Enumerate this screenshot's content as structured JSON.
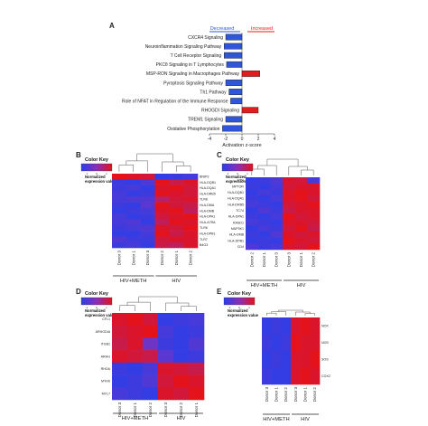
{
  "chart_data": [
    {
      "panel": "A",
      "type": "bar",
      "orientation": "horizontal",
      "categories": [
        "CXCR4 Signaling",
        "Neuroinflammation Signaling Pathway",
        "T Cell Receptor Signaling",
        "PKCθ Signaling in T Lymphocytes",
        "MSP-RON Signaling in Macrophages Pathway",
        "Pyroptosis Signaling Pathway",
        "Th1 Pathway",
        "Role of NFAT in Regulation of the Immune Response",
        "RHOGDI Signaling",
        "TREM1 Signaling",
        "Oxidative Phosphorylation"
      ],
      "values": [
        -2.0,
        -2.2,
        -2.2,
        -1.9,
        2.2,
        -2.0,
        -1.6,
        -1.4,
        2.0,
        -2.0,
        -2.4
      ],
      "xlabel": "Activation z-score",
      "xlim": [
        -4,
        4
      ],
      "xticks": [
        "-4",
        "-2",
        "0",
        "2",
        "4"
      ],
      "legend": [
        {
          "label": "Decreased",
          "color": "#2f56d9"
        },
        {
          "label": "Increased",
          "color": "#e01d1d"
        }
      ]
    },
    {
      "panel": "B",
      "type": "heatmap",
      "color_key_title": "Color Key",
      "color_key_label": "Normalized expression value",
      "color_key_ticks": [
        "-1",
        "0",
        "1"
      ],
      "rows": [
        "BNIP3",
        "HLA-DQB1",
        "HLA-DQA1",
        "HLA-DRB5",
        "TLR8",
        "HLA-DMA",
        "HLA-DMB",
        "HLA-DPA1",
        "HLA-A7RA",
        "TLR6",
        "HLA-DPB1",
        "TLR7",
        "B4G3"
      ],
      "columns": [
        "Donor 3",
        "Donor 1",
        "Donor 3",
        "Donor 2",
        "Donor 1",
        "Donor 2"
      ],
      "groups": [
        {
          "label": "HIV+METH",
          "cols": [
            0,
            1,
            2
          ]
        },
        {
          "label": "HIV",
          "cols": [
            3,
            4,
            5
          ]
        }
      ],
      "values": [
        [
          1.0,
          0.9,
          0.8,
          -0.9,
          -0.8,
          -0.7
        ],
        [
          -0.8,
          -0.9,
          -0.6,
          1.0,
          0.7,
          0.9
        ],
        [
          -0.8,
          -0.7,
          -0.9,
          0.9,
          1.0,
          0.8
        ],
        [
          -0.7,
          -0.9,
          -0.8,
          1.0,
          0.9,
          0.8
        ],
        [
          -0.7,
          -0.6,
          -0.6,
          0.5,
          0.8,
          0.9
        ],
        [
          -0.8,
          -0.9,
          -0.5,
          1.0,
          0.8,
          0.7
        ],
        [
          -0.9,
          -0.8,
          -0.7,
          0.9,
          1.0,
          0.6
        ],
        [
          -0.7,
          -0.9,
          -0.8,
          0.8,
          0.9,
          1.0
        ],
        [
          -0.7,
          -0.6,
          -0.9,
          0.6,
          1.0,
          0.9
        ],
        [
          -0.8,
          -0.7,
          -0.6,
          0.9,
          0.8,
          1.0
        ],
        [
          -0.9,
          -0.9,
          -0.7,
          1.0,
          0.7,
          0.9
        ],
        [
          -0.6,
          -0.8,
          -0.8,
          0.8,
          0.9,
          0.9
        ],
        [
          -0.8,
          -0.7,
          -0.9,
          0.7,
          0.6,
          0.9
        ]
      ]
    },
    {
      "panel": "C",
      "type": "heatmap",
      "color_key_title": "Color Key",
      "color_key_label": "Normalized expression value",
      "color_key_ticks": [
        "-1",
        "0",
        "1"
      ],
      "rows": [
        "FYN",
        "MPTOR",
        "HLA-DQB1",
        "HLA-DQA1",
        "HLA-DRB5",
        "TC74",
        "HLA-DPA1",
        "RASD1",
        "MAP3K1",
        "HLA-DMB",
        "HLA-DPB1",
        "CD4"
      ],
      "columns": [
        "Donor 2",
        "Donor 1",
        "Donor 3",
        "Donor 3",
        "Donor 1",
        "Donor 2"
      ],
      "groups": [
        {
          "label": "HIV+METH",
          "cols": [
            0,
            1,
            2
          ]
        },
        {
          "label": "HIV",
          "cols": [
            3,
            4,
            5
          ]
        }
      ],
      "values": [
        [
          -0.9,
          -0.8,
          -0.6,
          0.9,
          0.8,
          -0.7
        ],
        [
          -0.8,
          -0.9,
          -0.7,
          0.8,
          0.9,
          0.9
        ],
        [
          -0.9,
          -0.7,
          -0.8,
          0.9,
          1.0,
          0.9
        ],
        [
          -0.8,
          -0.9,
          -0.7,
          0.9,
          1.0,
          0.8
        ],
        [
          -0.7,
          -0.8,
          -0.9,
          0.8,
          0.9,
          1.0
        ],
        [
          -0.9,
          -0.6,
          -0.8,
          0.7,
          0.9,
          0.9
        ],
        [
          -0.8,
          -0.9,
          -0.7,
          1.0,
          0.8,
          0.9
        ],
        [
          -0.7,
          -0.8,
          -0.9,
          0.9,
          0.9,
          0.8
        ],
        [
          -0.9,
          -0.7,
          -0.8,
          0.8,
          1.0,
          0.7
        ],
        [
          -0.8,
          -0.9,
          -0.6,
          0.9,
          0.8,
          0.9
        ],
        [
          -0.9,
          -0.8,
          -0.9,
          1.0,
          0.9,
          0.8
        ],
        [
          -0.6,
          -0.8,
          -0.7,
          0.9,
          0.8,
          1.0
        ]
      ]
    },
    {
      "panel": "D",
      "type": "heatmap",
      "color_key_title": "Color Key",
      "color_key_label": "Normalized expression value",
      "color_key_ticks": [
        "-1",
        "0",
        "1"
      ],
      "rows": [
        "CFL1",
        "ARHGDIA",
        "ITGB1",
        "ARHG",
        "RHOA",
        "MYH9",
        "MYL7"
      ],
      "columns": [
        "Donor 3",
        "Donor 1",
        "Donor 2",
        "Donor 3",
        "Donor 2",
        "Donor 1"
      ],
      "groups": [
        {
          "label": "HIV+METH",
          "cols": [
            0,
            1,
            2
          ]
        },
        {
          "label": "HIV",
          "cols": [
            3,
            4,
            5
          ]
        }
      ],
      "values": [
        [
          0.9,
          1.0,
          0.8,
          -0.9,
          -0.8,
          -0.7
        ],
        [
          0.8,
          0.9,
          1.0,
          -0.7,
          -0.9,
          -0.8
        ],
        [
          0.7,
          0.9,
          -0.3,
          -0.8,
          -0.9,
          -0.6
        ],
        [
          0.9,
          0.8,
          0.7,
          -0.5,
          -0.9,
          -0.8
        ],
        [
          -0.8,
          -0.9,
          -0.7,
          0.9,
          0.8,
          0.7
        ],
        [
          -0.9,
          -0.8,
          -0.6,
          0.8,
          1.0,
          0.9
        ],
        [
          -0.7,
          -0.8,
          -0.9,
          0.9,
          0.8,
          1.0
        ]
      ]
    },
    {
      "panel": "E",
      "type": "heatmap",
      "color_key_title": "Color Key",
      "color_key_label": "Normalized expression value",
      "color_key_ticks": [
        "-1",
        "0",
        "1"
      ],
      "rows": [
        "NOX",
        "NOS",
        "SOS",
        "COX2"
      ],
      "columns": [
        "Donor 3",
        "Donor 1",
        "Donor 2",
        "Donor 3",
        "Donor 1",
        "Donor 2"
      ],
      "groups": [
        {
          "label": "HIV+METH",
          "cols": [
            0,
            1,
            2
          ]
        },
        {
          "label": "HIV",
          "cols": [
            3,
            4,
            5
          ]
        }
      ],
      "values": [
        [
          -0.9,
          -0.8,
          -0.9,
          0.9,
          1.0,
          0.9
        ],
        [
          -0.8,
          -0.9,
          -0.8,
          1.0,
          0.9,
          0.9
        ],
        [
          -0.9,
          -0.8,
          -0.9,
          0.9,
          0.9,
          1.0
        ],
        [
          -0.8,
          -0.9,
          -0.9,
          0.9,
          1.0,
          0.9
        ]
      ]
    }
  ],
  "colors": {
    "high": "#e3121b",
    "low": "#2a3ee8",
    "mid": "#8a2fb8"
  }
}
